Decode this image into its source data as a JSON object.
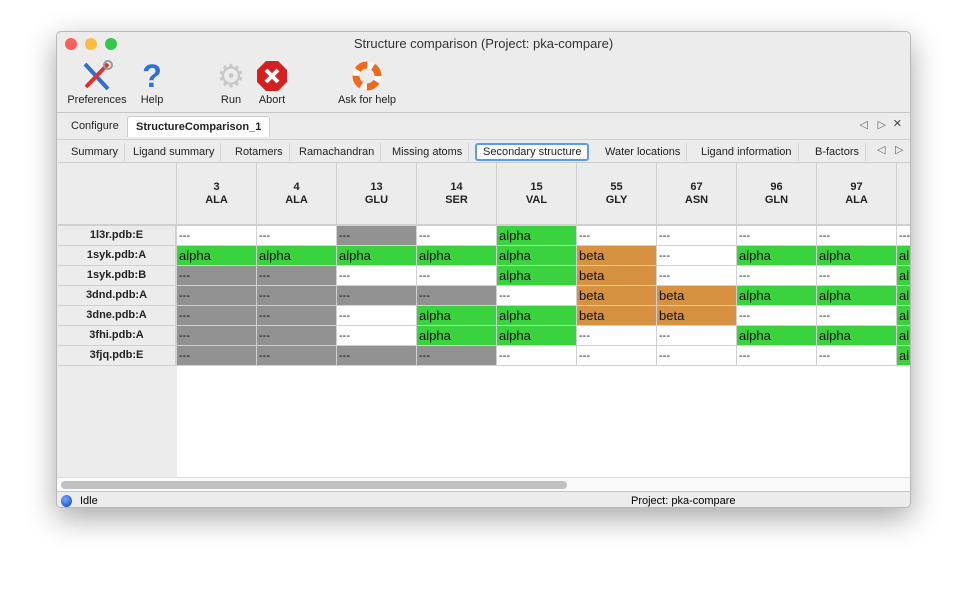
{
  "window": {
    "title": "Structure comparison (Project: pka-compare)"
  },
  "toolbar": [
    {
      "label": "Preferences",
      "icon": "tools-icon"
    },
    {
      "label": "Help",
      "icon": "help-icon"
    },
    {
      "label": "Run",
      "icon": "gear-icon"
    },
    {
      "label": "Abort",
      "icon": "abort-icon"
    },
    {
      "label": "Ask for help",
      "icon": "lifebuoy-icon"
    }
  ],
  "tabs": [
    {
      "label": "Configure"
    },
    {
      "label": "StructureComparison_1",
      "active": true
    }
  ],
  "subtabs": [
    {
      "label": "Summary"
    },
    {
      "label": "Ligand summary"
    },
    {
      "label": "Rotamers"
    },
    {
      "label": "Ramachandran"
    },
    {
      "label": "Missing atoms"
    },
    {
      "label": "Secondary structure",
      "active": true
    },
    {
      "label": "Water locations"
    },
    {
      "label": "Ligand information"
    },
    {
      "label": "B-factors"
    }
  ],
  "colors": {
    "alpha": "#3ad33f",
    "beta": "#d69141",
    "missing": "#929292",
    "none": "#ffffff"
  },
  "table": {
    "columns": [
      {
        "num": "3",
        "res": "ALA"
      },
      {
        "num": "4",
        "res": "ALA"
      },
      {
        "num": "13",
        "res": "GLU"
      },
      {
        "num": "14",
        "res": "SER"
      },
      {
        "num": "15",
        "res": "VAL"
      },
      {
        "num": "55",
        "res": "GLY"
      },
      {
        "num": "67",
        "res": "ASN"
      },
      {
        "num": "96",
        "res": "GLN"
      },
      {
        "num": "97",
        "res": "ALA"
      },
      {
        "num": "",
        "res": ""
      }
    ],
    "rows": [
      {
        "label": "1l3r.pdb:E",
        "cells": [
          [
            "---",
            "none"
          ],
          [
            "---",
            "none"
          ],
          [
            "---",
            "missing"
          ],
          [
            "---",
            "none"
          ],
          [
            "alpha",
            "alpha"
          ],
          [
            "---",
            "none"
          ],
          [
            "---",
            "none"
          ],
          [
            "---",
            "none"
          ],
          [
            "---",
            "none"
          ],
          [
            "---",
            "none"
          ]
        ]
      },
      {
        "label": "1syk.pdb:A",
        "cells": [
          [
            "alpha",
            "alpha"
          ],
          [
            "alpha",
            "alpha"
          ],
          [
            "alpha",
            "alpha"
          ],
          [
            "alpha",
            "alpha"
          ],
          [
            "alpha",
            "alpha"
          ],
          [
            "beta",
            "beta"
          ],
          [
            "---",
            "none"
          ],
          [
            "alpha",
            "alpha"
          ],
          [
            "alpha",
            "alpha"
          ],
          [
            "alpha",
            "alpha"
          ]
        ]
      },
      {
        "label": "1syk.pdb:B",
        "cells": [
          [
            "---",
            "missing"
          ],
          [
            "---",
            "missing"
          ],
          [
            "---",
            "none"
          ],
          [
            "---",
            "none"
          ],
          [
            "alpha",
            "alpha"
          ],
          [
            "beta",
            "beta"
          ],
          [
            "---",
            "none"
          ],
          [
            "---",
            "none"
          ],
          [
            "---",
            "none"
          ],
          [
            "alpha",
            "alpha"
          ]
        ]
      },
      {
        "label": "3dnd.pdb:A",
        "cells": [
          [
            "---",
            "missing"
          ],
          [
            "---",
            "missing"
          ],
          [
            "---",
            "missing"
          ],
          [
            "---",
            "missing"
          ],
          [
            "---",
            "none"
          ],
          [
            "beta",
            "beta"
          ],
          [
            "beta",
            "beta"
          ],
          [
            "alpha",
            "alpha"
          ],
          [
            "alpha",
            "alpha"
          ],
          [
            "alpha",
            "alpha"
          ]
        ]
      },
      {
        "label": "3dne.pdb:A",
        "cells": [
          [
            "---",
            "missing"
          ],
          [
            "---",
            "missing"
          ],
          [
            "---",
            "none"
          ],
          [
            "alpha",
            "alpha"
          ],
          [
            "alpha",
            "alpha"
          ],
          [
            "beta",
            "beta"
          ],
          [
            "beta",
            "beta"
          ],
          [
            "---",
            "none"
          ],
          [
            "---",
            "none"
          ],
          [
            "alpha",
            "alpha"
          ]
        ]
      },
      {
        "label": "3fhi.pdb:A",
        "cells": [
          [
            "---",
            "missing"
          ],
          [
            "---",
            "missing"
          ],
          [
            "---",
            "none"
          ],
          [
            "alpha",
            "alpha"
          ],
          [
            "alpha",
            "alpha"
          ],
          [
            "---",
            "none"
          ],
          [
            "---",
            "none"
          ],
          [
            "alpha",
            "alpha"
          ],
          [
            "alpha",
            "alpha"
          ],
          [
            "alpha",
            "alpha"
          ]
        ]
      },
      {
        "label": "3fjq.pdb:E",
        "cells": [
          [
            "---",
            "missing"
          ],
          [
            "---",
            "missing"
          ],
          [
            "---",
            "missing"
          ],
          [
            "---",
            "missing"
          ],
          [
            "---",
            "none"
          ],
          [
            "---",
            "none"
          ],
          [
            "---",
            "none"
          ],
          [
            "---",
            "none"
          ],
          [
            "---",
            "none"
          ],
          [
            "alpha",
            "alpha"
          ]
        ]
      }
    ]
  },
  "status": {
    "state": "Idle",
    "project": "Project: pka-compare"
  }
}
